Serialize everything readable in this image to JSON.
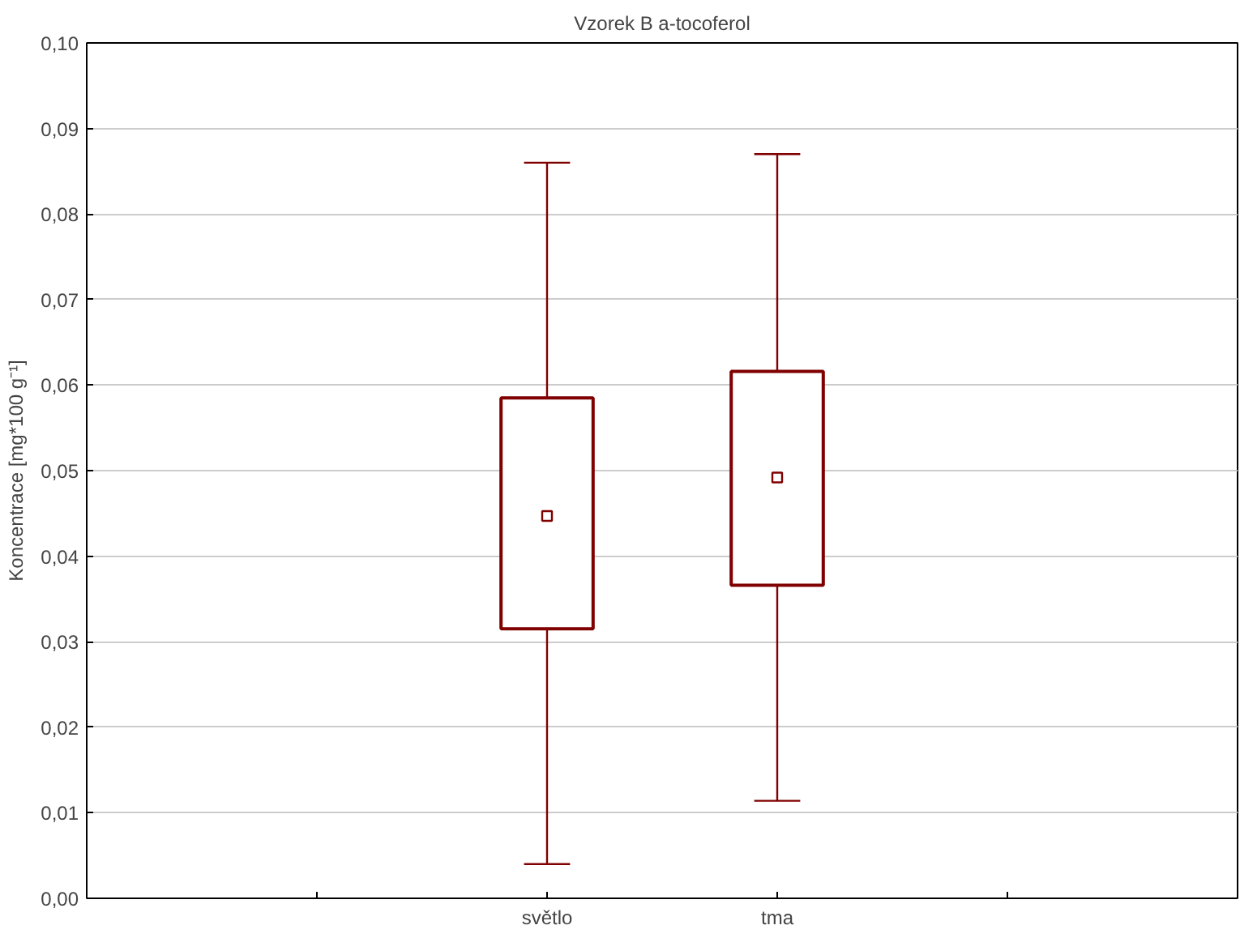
{
  "chart_data": {
    "type": "box",
    "title": "Vzorek B a-tocoferol",
    "ylabel": "Koncentrace [mg*100 g⁻¹]",
    "categories": [
      "světlo",
      "tma"
    ],
    "color": "#800000",
    "boxes": [
      {
        "low": 0.004,
        "q1": 0.0315,
        "median": 0.0447,
        "q3": 0.0585,
        "high": 0.086
      },
      {
        "low": 0.0114,
        "q1": 0.0366,
        "median": 0.0492,
        "q3": 0.0616,
        "high": 0.087
      }
    ],
    "ylim": [
      0,
      0.1
    ],
    "yticks": [
      {
        "value": 0,
        "label": "0,00"
      },
      {
        "value": 0.01,
        "label": "0,01"
      },
      {
        "value": 0.02,
        "label": "0,02"
      },
      {
        "value": 0.03,
        "label": "0,03"
      },
      {
        "value": 0.04,
        "label": "0,04"
      },
      {
        "value": 0.05,
        "label": "0,05"
      },
      {
        "value": 0.06,
        "label": "0,06"
      },
      {
        "value": 0.07,
        "label": "0,07"
      },
      {
        "value": 0.08,
        "label": "0,08"
      },
      {
        "value": 0.09,
        "label": "0,09"
      },
      {
        "value": 0.1,
        "label": "0,10"
      }
    ],
    "grid": "y",
    "marker": "square"
  }
}
